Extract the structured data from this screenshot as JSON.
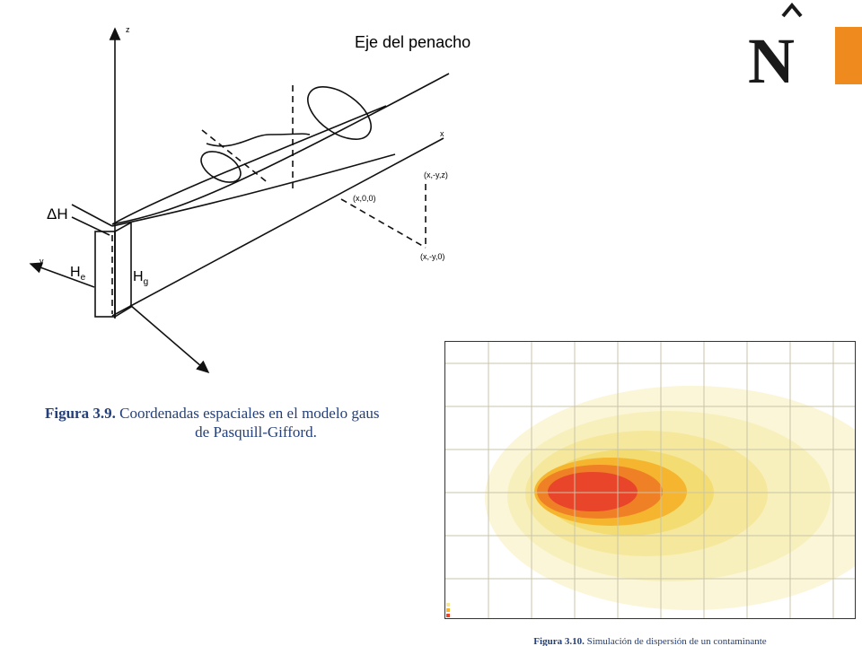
{
  "slide": {
    "figure_3_9": {
      "plume_axis_label": "Eje del penacho",
      "axis_z": "z",
      "axis_x": "x",
      "axis_y": "y",
      "delta_h": "ΔH",
      "he": "H",
      "he_sub": "e",
      "hg": "H",
      "hg_sub": "g",
      "point_x00": "(x,0,0)",
      "point_xyz": "(x,-y,z)",
      "point_xy0": "(x,-y,0)",
      "caption_label": "Figura 3.9.",
      "caption_line1": "Coordenadas espaciales en el modelo gaus",
      "caption_line2": "de Pasquill-Gifford."
    },
    "figure_3_10": {
      "caption_label": "Figura 3.10.",
      "caption_text": "Simulación de dispersión de un contaminante"
    },
    "logo": "N"
  }
}
